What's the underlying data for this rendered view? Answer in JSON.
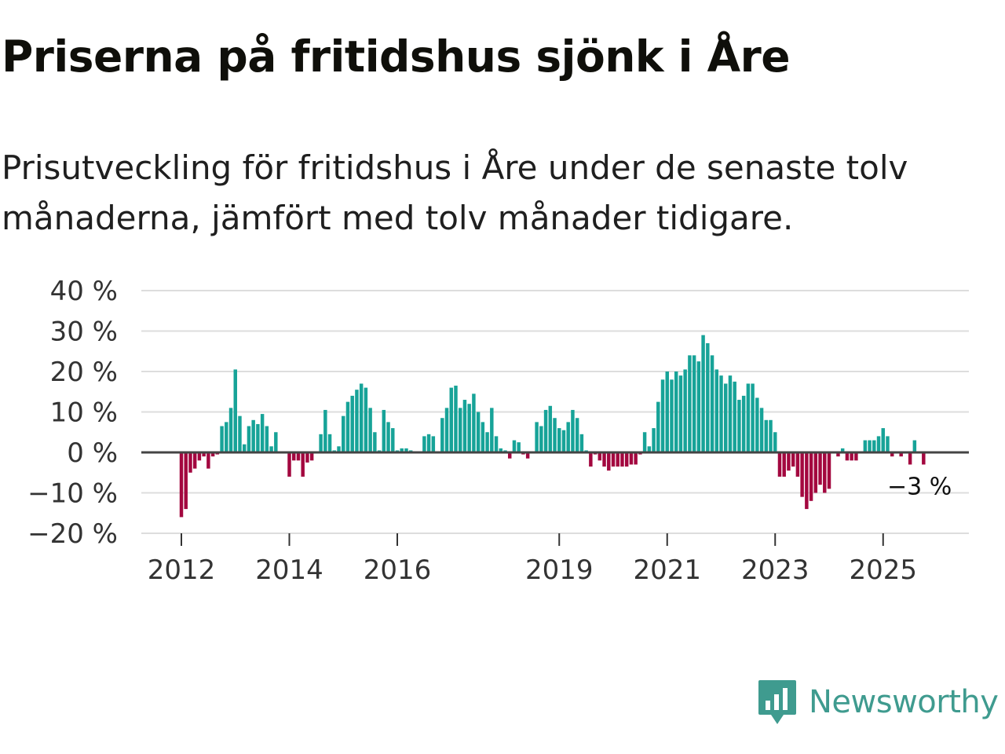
{
  "header": {
    "title": "Priserna på fritidshus sjönk i Åre",
    "subtitle": "Prisutveckling för fritidshus i Åre under de senaste tolv månaderna, jämfört med tolv månader tidigare."
  },
  "brand": {
    "name": "Newsworthy",
    "color": "#3f9b8f"
  },
  "colors": {
    "positive": "#17a398",
    "negative": "#a3073f",
    "grid": "#dddddd",
    "zero_line": "#444444"
  },
  "chart_data": {
    "type": "bar",
    "title": "Priserna på fritidshus sjönk i Åre",
    "xlabel": "",
    "ylabel": "",
    "ylim": [
      -20,
      40
    ],
    "y_ticks": [
      40,
      30,
      20,
      10,
      0,
      -10,
      -20
    ],
    "y_tick_labels": [
      "40 %",
      "30 %",
      "20 %",
      "10 %",
      "0 %",
      "−10 %",
      "−20 %"
    ],
    "x_ticks": [
      2012,
      2014,
      2016,
      2019,
      2021,
      2023,
      2025
    ],
    "x_tick_labels": [
      "2012",
      "2014",
      "2016",
      "2019",
      "2021",
      "2023",
      "2025"
    ],
    "start": "2012-01",
    "interval": "month",
    "values": [
      -16,
      -14,
      -5,
      -4,
      -2,
      -1,
      -4,
      -1,
      -0.5,
      6.5,
      7.5,
      11,
      20.5,
      9,
      2,
      6.5,
      8,
      7,
      9.5,
      6.5,
      1.5,
      5,
      0,
      0,
      -6,
      -2,
      -2,
      -6,
      -2.5,
      -2,
      0,
      4.5,
      10.5,
      4.5,
      0.5,
      1.5,
      9,
      12.5,
      14,
      15.5,
      17,
      16,
      11,
      5,
      0.5,
      10.5,
      7.5,
      6,
      0.5,
      1,
      1,
      0.5,
      0,
      0,
      4,
      4.5,
      4,
      0,
      8.5,
      11,
      16,
      16.5,
      11,
      13,
      12,
      14.5,
      10,
      7.5,
      5,
      11,
      4,
      1,
      0.5,
      -1.5,
      3,
      2.5,
      -0.5,
      -1.5,
      0,
      7.5,
      6.5,
      10.5,
      11.5,
      8.5,
      6,
      5.5,
      7.5,
      10.5,
      8.5,
      4.5,
      0.5,
      -3.5,
      -0.5,
      -2,
      -3.5,
      -4.5,
      -3.5,
      -3.5,
      -3.5,
      -3.5,
      -3,
      -3,
      -0.5,
      5,
      1.5,
      6,
      12.5,
      18,
      20,
      18,
      20,
      19,
      20.5,
      24,
      24,
      22.5,
      29,
      27,
      24,
      20.5,
      19,
      17,
      19,
      17.5,
      13,
      14,
      17,
      17,
      13.5,
      11,
      8,
      8,
      5,
      -6,
      -6,
      -4.5,
      -3.5,
      -6,
      -11,
      -14,
      -12,
      -10,
      -8,
      -10,
      -9,
      0,
      -1,
      1,
      -2,
      -2,
      -2,
      0,
      3,
      3,
      3,
      4,
      6,
      4,
      -1,
      0,
      -1,
      0,
      -3,
      3,
      0,
      -3
    ],
    "last_value_label": "−3 %"
  }
}
